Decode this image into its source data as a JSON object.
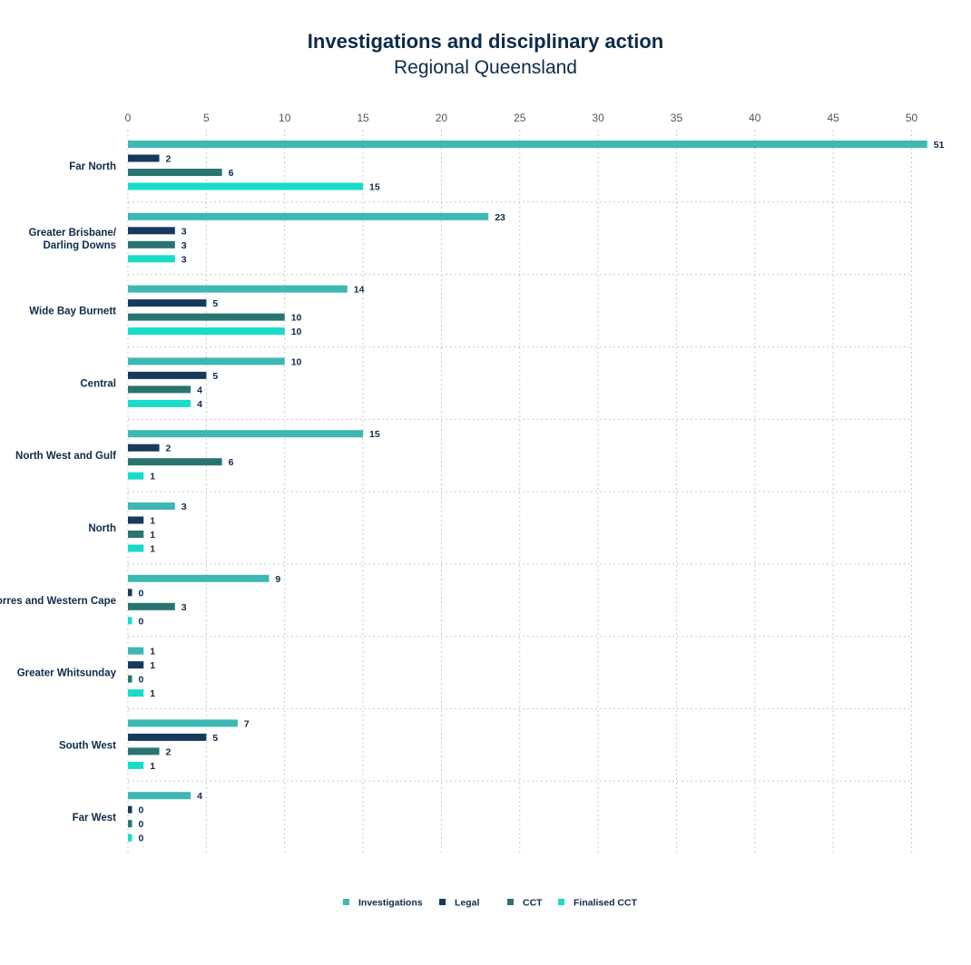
{
  "chart_data": {
    "type": "bar",
    "orientation": "horizontal",
    "title": "Investigations and disciplinary action",
    "subtitle": "Regional Queensland",
    "categories": [
      "Far North",
      "Greater Brisbane/ Darling Downs",
      "Wide Bay Burnett",
      "Central",
      "North West and Gulf",
      "North",
      "Torres and Western Cape",
      "Greater Whitsunday",
      "South West",
      "Far West"
    ],
    "series": [
      {
        "name": "Investigations",
        "color": "#3db8b3",
        "values": [
          51,
          23,
          14,
          10,
          15,
          3,
          9,
          1,
          7,
          4
        ]
      },
      {
        "name": "Legal",
        "color": "#163a5c",
        "values": [
          2,
          3,
          5,
          5,
          2,
          1,
          0,
          1,
          5,
          0
        ]
      },
      {
        "name": "CCT",
        "color": "#2a7470",
        "values": [
          6,
          3,
          10,
          4,
          6,
          1,
          3,
          0,
          2,
          0
        ]
      },
      {
        "name": "Finalised CCT",
        "color": "#16dcc8",
        "values": [
          15,
          3,
          10,
          4,
          1,
          1,
          0,
          1,
          1,
          0
        ]
      }
    ],
    "xlim": [
      0,
      50
    ],
    "xticks": [
      0,
      5,
      10,
      15,
      20,
      25,
      30,
      35,
      40,
      45,
      50
    ],
    "grid": true,
    "xaxis_position": "top",
    "legend_position": "bottom"
  }
}
